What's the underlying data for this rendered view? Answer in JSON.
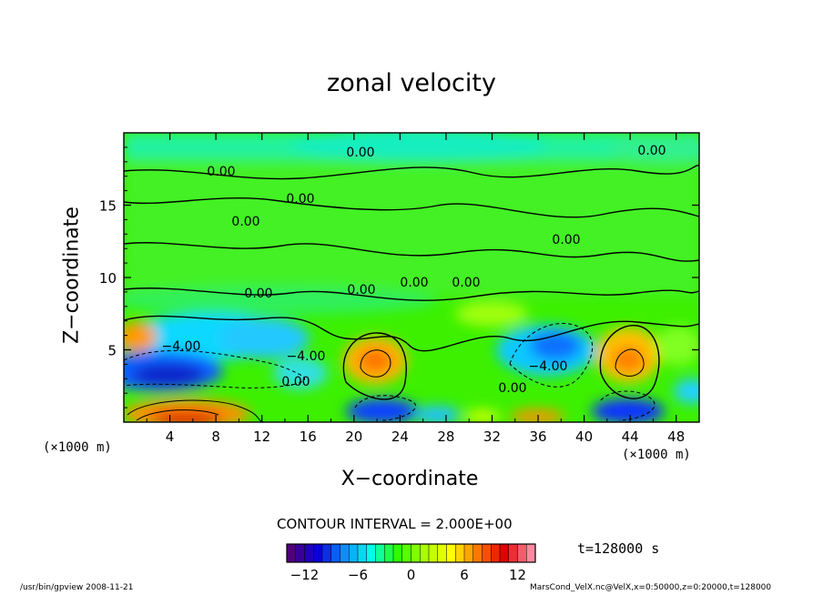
{
  "chart_data": {
    "type": "heatmap",
    "title": "zonal velocity",
    "xlabel": "X−coordinate",
    "ylabel": "Z−coordinate",
    "x_unit_label": "(×1000 m)",
    "x_ticks": [
      4,
      8,
      12,
      16,
      20,
      24,
      28,
      32,
      36,
      40,
      44,
      48
    ],
    "y_ticks": [
      5,
      10,
      15
    ],
    "xlim": [
      0,
      50
    ],
    "ylim": [
      0,
      20
    ],
    "contour_interval_text": "CONTOUR INTERVAL = 2.000E+00",
    "contour_labels": [
      "0.00",
      "0.00",
      "0.00",
      "0.00",
      "0.00",
      "0.00",
      "0.00",
      "0.00",
      "0.00",
      "−4.00",
      "−4.00",
      "0.00",
      "−4.00",
      "0.00",
      "0.00"
    ],
    "colorbar": {
      "ticks": [
        "−12",
        "−6",
        "0",
        "6",
        "12"
      ],
      "tick_values": [
        -12,
        -6,
        0,
        6,
        12
      ],
      "range": [
        -14,
        14
      ],
      "colors": [
        "#50007a",
        "#0a00d8",
        "#0f8cff",
        "#00ffe8",
        "#2cff00",
        "#a8ff00",
        "#ffff00",
        "#ff7800",
        "#e20000",
        "#ff8aa0"
      ]
    },
    "grid": false,
    "legend": "colorbar-bottom"
  },
  "annotations": {
    "time": "t=128000 s",
    "footer_left": "/usr/bin/gpview   2008-11-21",
    "footer_right": "MarsCond_VelX.nc@VelX,x=0:50000,z=0:20000,t=128000"
  }
}
